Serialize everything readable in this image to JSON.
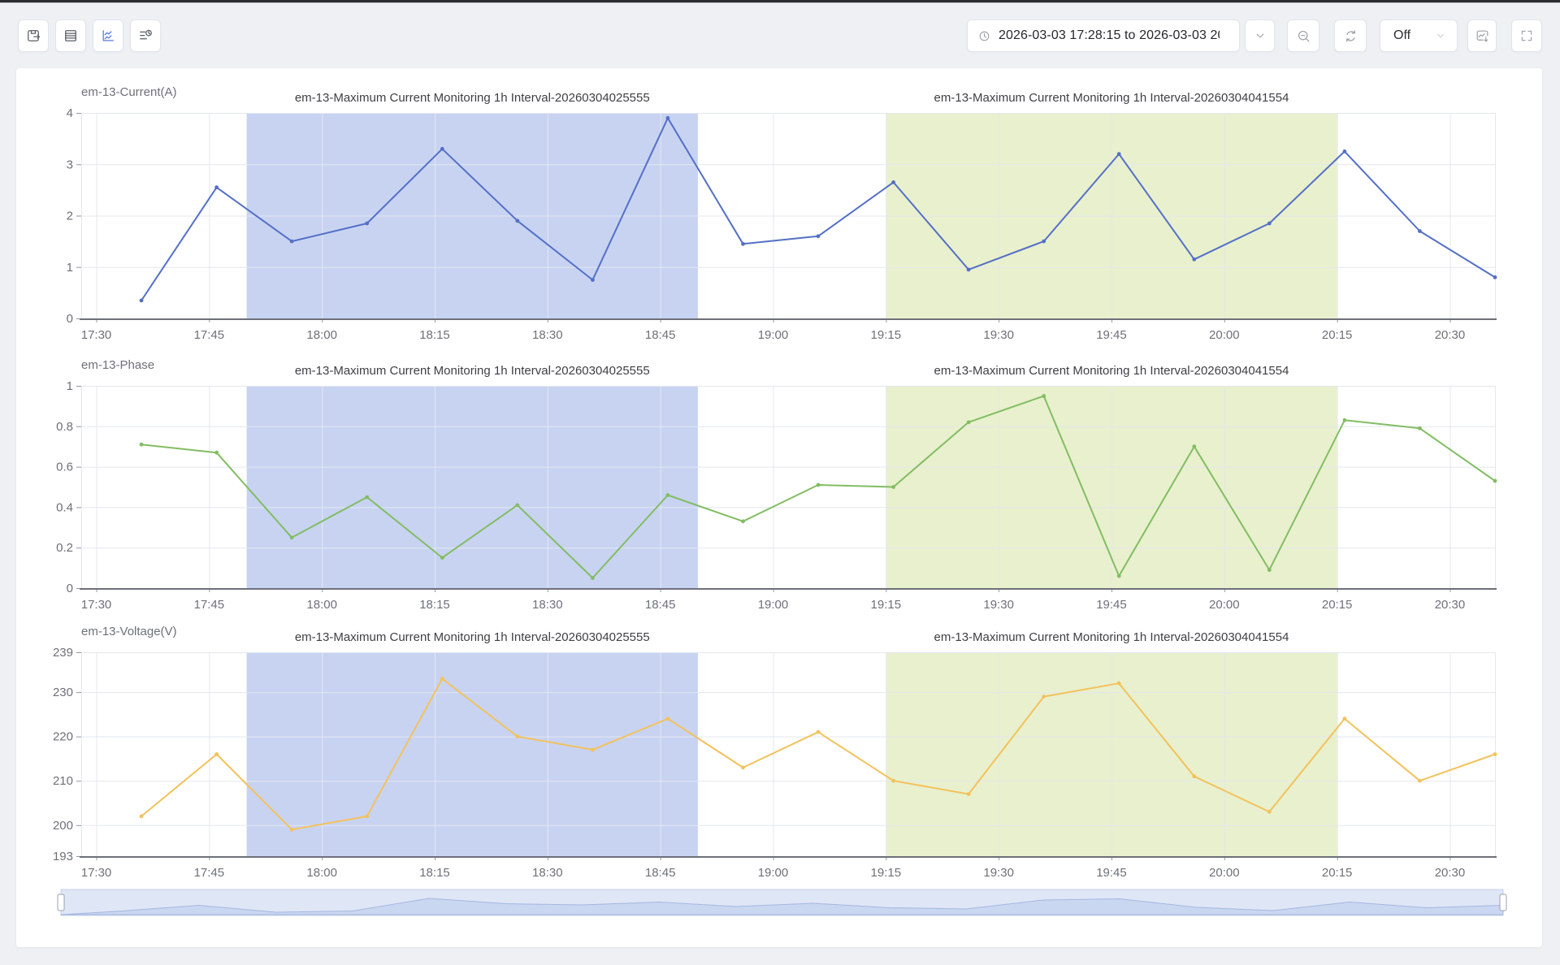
{
  "toolbar": {
    "datetime_range": {
      "value": "2026-03-03 17:28:15 to 2026-03-03 20"
    },
    "auto_refresh": {
      "label": "Off"
    },
    "buttons_left": [
      {
        "name": "save-export",
        "icon": "floppy-arrow-icon"
      },
      {
        "name": "table-view",
        "icon": "table-icon"
      },
      {
        "name": "chart-view",
        "icon": "line-chart-icon",
        "active": true,
        "active_color": "#5b79dc"
      },
      {
        "name": "event-log",
        "icon": "list-clock-icon"
      }
    ],
    "buttons_right": [
      {
        "name": "expand-range",
        "icon": "chevron-down-icon"
      },
      {
        "name": "zoom-out",
        "icon": "zoom-out-icon"
      },
      {
        "name": "refresh",
        "icon": "refresh-icon"
      },
      {
        "name": "auto-refresh-select",
        "icon": "chevron-down-icon"
      },
      {
        "name": "save-image",
        "icon": "image-download-icon"
      },
      {
        "name": "fullscreen",
        "icon": "fullscreen-icon"
      }
    ]
  },
  "chart_data": {
    "type": "line",
    "x_tick_labels": [
      "17:30",
      "17:45",
      "18:00",
      "18:15",
      "18:30",
      "18:45",
      "19:00",
      "19:15",
      "19:30",
      "19:45",
      "20:00",
      "20:15",
      "20:30"
    ],
    "x_tick_minutes": [
      2,
      17,
      32,
      47,
      62,
      77,
      92,
      107,
      122,
      137,
      152,
      167,
      182
    ],
    "range_minutes": [
      0,
      188
    ],
    "range_times": [
      "17:28",
      "20:36"
    ],
    "point_times": [
      "17:36",
      "17:46",
      "17:56",
      "18:06",
      "18:16",
      "18:26",
      "18:36",
      "18:46",
      "18:56",
      "19:06",
      "19:16",
      "19:26",
      "19:36",
      "19:46",
      "19:56",
      "20:06",
      "20:16",
      "20:26",
      "20:36"
    ],
    "point_minutes": [
      8,
      18,
      28,
      38,
      48,
      58,
      68,
      78,
      88,
      98,
      108,
      118,
      128,
      138,
      148,
      158,
      168,
      178,
      188
    ],
    "grid": true,
    "mark_areas": [
      {
        "label": "em-13-Maximum Current Monitoring 1h Interval-20260304025555",
        "start": "17:50",
        "end": "18:50",
        "start_min": 22,
        "end_min": 82,
        "color": "#c8d3f2"
      },
      {
        "label": "em-13-Maximum Current Monitoring 1h Interval-20260304041554",
        "start": "19:15",
        "end": "20:15",
        "start_min": 107,
        "end_min": 167,
        "color": "#e9f0cd"
      }
    ],
    "series": [
      {
        "name": "em-13-Current(A)",
        "color": "#5470c6",
        "ylim": [
          0,
          4
        ],
        "yticks": [
          0,
          1,
          2,
          3,
          4
        ],
        "values": [
          0.35,
          2.55,
          1.5,
          1.85,
          3.3,
          1.9,
          0.75,
          3.9,
          1.45,
          1.6,
          2.65,
          0.95,
          1.5,
          3.2,
          1.15,
          1.85,
          3.25,
          1.7,
          0.8
        ]
      },
      {
        "name": "em-13-Phase",
        "color": "#82bd63",
        "ylim": [
          0,
          1
        ],
        "yticks": [
          0,
          0.2,
          0.4,
          0.6,
          0.8,
          1
        ],
        "values": [
          0.71,
          0.67,
          0.25,
          0.45,
          0.15,
          0.41,
          0.05,
          0.46,
          0.33,
          0.51,
          0.5,
          0.82,
          0.95,
          0.06,
          0.7,
          0.09,
          0.83,
          0.79,
          0.53
        ]
      },
      {
        "name": "em-13-Voltage(V)",
        "color": "#f2c25c",
        "ylim": [
          193,
          239
        ],
        "yticks": [
          193,
          200,
          210,
          220,
          230,
          239
        ],
        "values": [
          202,
          216,
          199,
          202,
          233,
          220,
          217,
          224,
          213,
          221,
          210,
          207,
          229,
          232,
          211,
          203,
          224,
          210,
          216
        ]
      }
    ],
    "datazoom": {
      "shadow_series": "em-13-Voltage(V)",
      "selected_range": "full"
    }
  }
}
